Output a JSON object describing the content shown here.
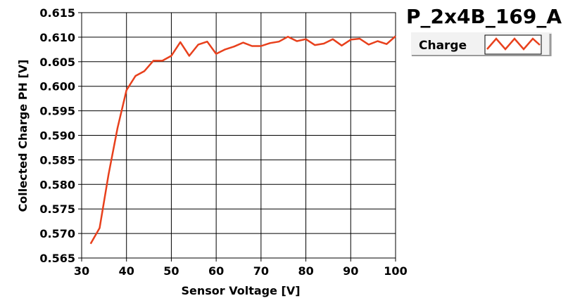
{
  "chart_data": {
    "type": "line",
    "title": "P_2x4B_169_A",
    "xlabel": "Sensor Voltage [V]",
    "ylabel": "Collected Charge PH [V]",
    "xlim": [
      30,
      100
    ],
    "ylim": [
      0.565,
      0.615
    ],
    "x_ticks": [
      "30",
      "40",
      "50",
      "60",
      "70",
      "80",
      "90",
      "100"
    ],
    "y_ticks": [
      "0.565",
      "0.570",
      "0.575",
      "0.580",
      "0.585",
      "0.590",
      "0.595",
      "0.600",
      "0.605",
      "0.610",
      "0.615"
    ],
    "grid": true,
    "legend": "top-right",
    "series": [
      {
        "name": "Charge",
        "color": "#e8401c",
        "x": [
          32,
          34,
          36,
          38,
          40,
          42,
          44,
          46,
          48,
          50,
          52,
          54,
          56,
          58,
          60,
          62,
          64,
          66,
          68,
          70,
          72,
          74,
          76,
          78,
          80,
          82,
          84,
          86,
          88,
          90,
          92,
          94,
          96,
          98,
          100
        ],
        "y": [
          0.5679,
          0.5711,
          0.582,
          0.5915,
          0.5992,
          0.6021,
          0.6031,
          0.6052,
          0.6052,
          0.6062,
          0.609,
          0.6062,
          0.6085,
          0.6091,
          0.6066,
          0.6075,
          0.6081,
          0.6089,
          0.6082,
          0.6082,
          0.6088,
          0.6091,
          0.6101,
          0.6092,
          0.6096,
          0.6084,
          0.6087,
          0.6096,
          0.6083,
          0.6095,
          0.6097,
          0.6085,
          0.6092,
          0.6086,
          0.6102
        ]
      }
    ]
  }
}
